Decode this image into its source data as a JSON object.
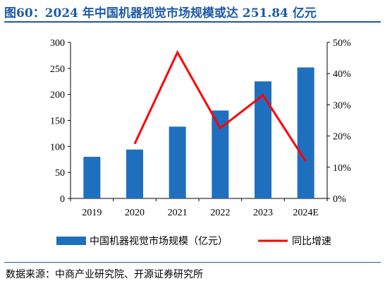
{
  "title": "图60：2024 年中国机器视觉市场规模或达 251.84 亿元",
  "source": "数据来源：中商产业研究院、开源证券研究所",
  "chart_data": {
    "type": "bar",
    "title": "图60：2024 年中国机器视觉市场规模或达 251.84 亿元",
    "categories": [
      "2019",
      "2020",
      "2021",
      "2022",
      "2023",
      "2024E"
    ],
    "series": [
      {
        "name": "中国机器视觉市场规模（亿元）",
        "type": "bar",
        "axis": "left",
        "color": "#1f6fbf",
        "values": [
          80,
          94,
          138,
          169,
          225,
          251.84
        ]
      },
      {
        "name": "同比增速",
        "type": "line",
        "axis": "right",
        "color": "#ff0000",
        "values": [
          null,
          17.5,
          46.8,
          22.5,
          33.1,
          11.9
        ]
      }
    ],
    "y_left": {
      "min": 0,
      "max": 300,
      "ticks": [
        "0",
        "50",
        "100",
        "150",
        "200",
        "250",
        "300"
      ]
    },
    "y_right": {
      "min": 0,
      "max": 50,
      "ticks": [
        "0%",
        "10%",
        "20%",
        "30%",
        "40%",
        "50%"
      ]
    },
    "legend_position": "bottom",
    "grid": false
  }
}
